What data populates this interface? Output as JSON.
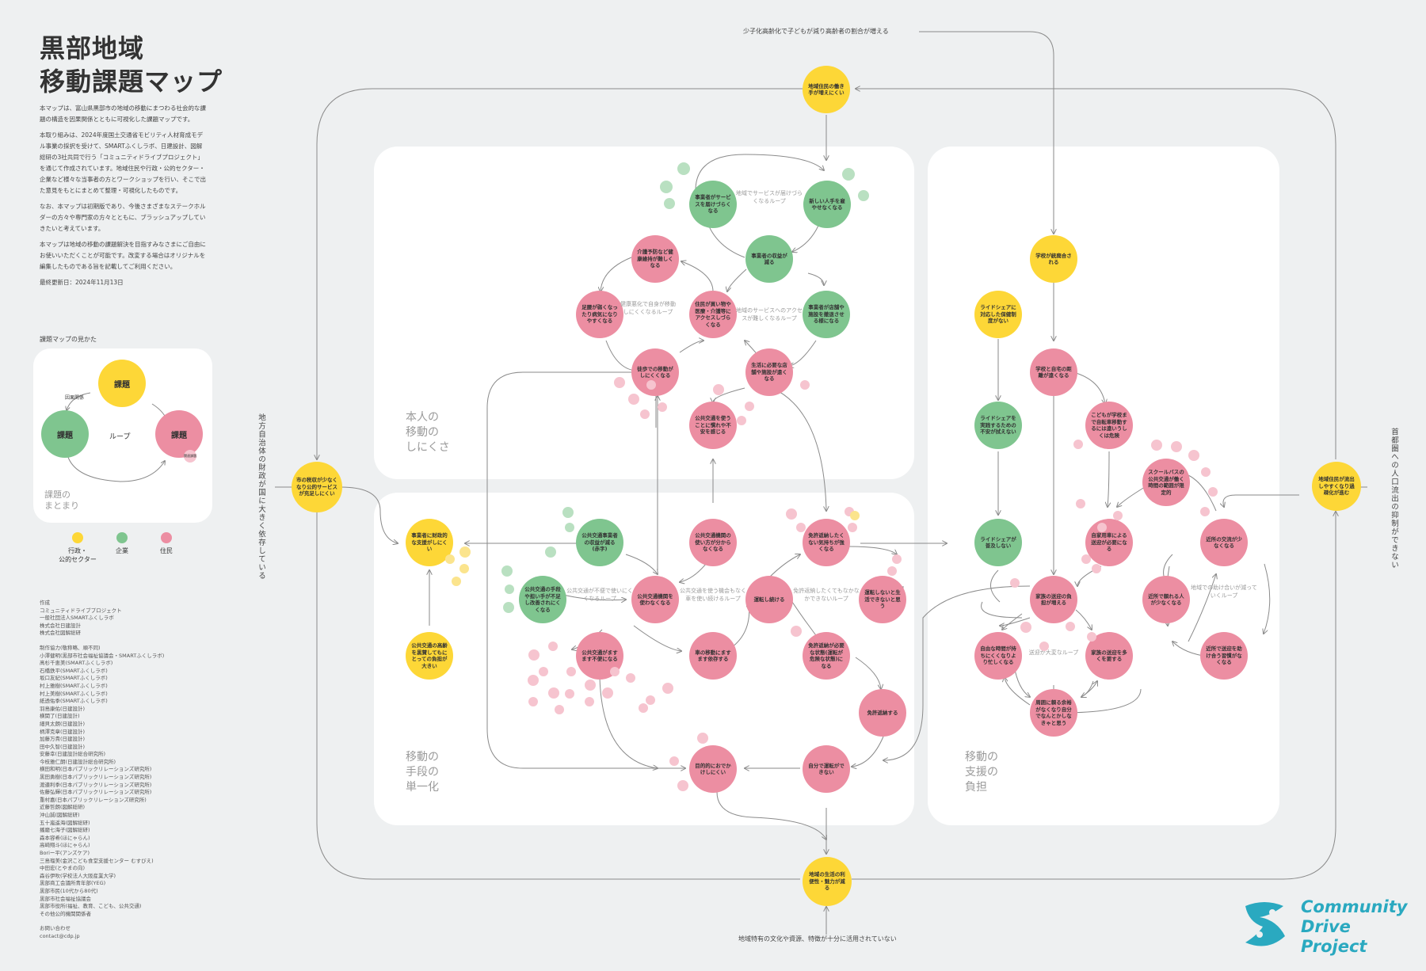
{
  "title": {
    "line1": "黒部地域",
    "line2": "移動課題マップ"
  },
  "intro": [
    "本マップは、富山県黒部市の地域の移動にまつわる社会的な課題の構造を因果関係とともに可視化した課題マップです。",
    "本取り組みは、2024年度国土交通省モビリティ人材育成モデル事業の採択を受けて、SMARTふくしラボ、日建設計、図解総研の3社共同で行う「コミュニティドライブプロジェクト」を通じて作成されています。地域住民や行政・公的セクター・企業など様々な当事者の方とワークショップを行い、そこで出た意見をもとにまとめて整理・可視化したものです。",
    "なお、本マップは初期版であり、今後さまざまなステークホルダーの方々や専門家の方々とともに、ブラッシュアップしていきたいと考えています。",
    "本マップは地域の移動の課題解決を目指すみなさまにご自由にお使いいただくことが可能です。改変する場合はオリジナルを編集したものである旨を記載してご利用ください。",
    "最終更新日：2024年11月13日"
  ],
  "legend": {
    "caption": "課題マップの見かた",
    "node_label": "課題",
    "arrow_label": "因果関係",
    "loop_label": "ループ",
    "mini_label": "関連課題",
    "group_label": "課題の\nまとまり",
    "colors": [
      {
        "label": "行政・\n公的セクター",
        "color": "#fdd737"
      },
      {
        "label": "企業",
        "color": "#7fc58f"
      },
      {
        "label": "住民",
        "color": "#ec8ea2"
      }
    ]
  },
  "credits": [
    "作成",
    "コミュニティドライブプロジェクト",
    "一般社団法人SMARTふくしラボ",
    "株式会社日建設計",
    "株式会社図解総研",
    "",
    "制作協力(敬称略、順不同)",
    "小澤健明(黒部市社会福祉協議会・SMARTふくしラボ)",
    "髙杉千恵美(SMARTふくしラボ)",
    "石橋鉄平(SMARTふくしラボ)",
    "坂口友紀(SMARTふくしラボ)",
    "村上雅樹(SMARTふくしラボ)",
    "村上美樹(SMARTふくしラボ)",
    "紙透佑季(SMARTふくしラボ)",
    "羽島康佑(日建設計)",
    "横関了(日建設計)",
    "細貝太朗(日建設計)",
    "柄澤克章(日建設計)",
    "加藤万貴(日建設計)",
    "田中久智(日建設計)",
    "安藤幸(日建設計総合研究所)",
    "今枝雅仁朗(日建設計総合研究所)",
    "横田和明(日本パブリックリレーションズ研究所)",
    "黒田勇樹(日本パブリックリレーションズ研究所)",
    "渡邉利季(日本パブリックリレーションズ研究所)",
    "佐藤弘輝(日本パブリックリレーションズ研究所)",
    "重村嘉(日本パブリックリレーションズ研究所)",
    "近藤哲朗(図解総研)",
    "沖山誠(図解総研)",
    "五十嵐遥海(図解総研)",
    "播磨七海子(図解総研)",
    "森本容希(ほにゃらん)",
    "高崎翔斗(ほにゃらん)",
    "Boriー平(アンズケア)",
    "三島瑠美(金沢こども食堂支援センター むすびえ)",
    "中田宏(とやまの向)",
    "森谷伊吹(学校法人大阪産業大学)",
    "黒部商工会議所青年部(YEG)",
    "黒部市民(10代から80代)",
    "黒部市社会福祉協議会",
    "黒部市役所(福祉、教育、こども、公共交通)",
    "その他公的機関関係者",
    "",
    "お問い合わせ",
    "contact@cdp.jp"
  ],
  "external": {
    "top": "少子化高齢化で子どもが減り高齢者の割合が増える",
    "bottom": "地域特有の文化や資源、特徴が十分に活用されていない",
    "left": "地方自治体の財政が国に大きく依存している",
    "right": "首都圏への人口流出の抑制ができない"
  },
  "sections": {
    "s1": "本人の\n移動の\nしにくさ",
    "s2": "移動の\n手段の\n単一化",
    "s3": "移動の\n支援の\n負担"
  },
  "nodes": {
    "n_top": "地域住民の働き手が増えにくい",
    "n_left": "市の税収が少なくなり公的サービスが充足しにくい",
    "n_bottom": "地域の生活の利便性・魅力が減る",
    "n_right": "地域住民が流出しやすくなり過疎化が進む",
    "n_biz": "事業者がサービスを届けづらくなる",
    "n_hire": "新しい人手を雇やせなくなる",
    "n_profit": "事業者の収益が減る",
    "n_care": "介護予防など健康維持が難しくなる",
    "n_legs": "足腰が弱くなったり病気になりやすくなる",
    "n_home": "住民が買い物や医療・介護等にアクセスしづらくなる",
    "n_store": "事業者が店舗や施設を撤退させる様になる",
    "n_walk": "徒歩での移動がしにくくなる",
    "n_far": "生活に必要な店舗や施設が遠くなる",
    "n_pt": "公共交通を使うことに慣れや不安を感じる",
    "n_support": "事業者に財政的な支援がしにくい",
    "n_pte": "公共交通事業者の収益が減る(赤字)",
    "n_ptf": "公共交通機関の使い方が分からなくなる",
    "n_license": "免許返納したくない気持ちが強くなる",
    "n_cost": "公共交通の手段や担い手が不足し改善されにくくなる",
    "n_ptl": "公共交通機関を使わなくなる",
    "n_drive": "運転し続ける",
    "n_nodrive": "運転しないと生活できないと思う",
    "n_gov": "公共交通の高齢を黒賛してもにとっての負担が大きい",
    "n_inc": "公共交通がますます不便になる",
    "n_car": "車の移動にますます依存する",
    "n_lic2": "免許返納が必要な状態(運転が危険な状態)になる",
    "n_ret": "免許返納する",
    "n_out": "目的的におでかけしにくい",
    "n_self": "自分で運転ができない",
    "n_school": "学校が統廃合される",
    "n_rides": "ライドシェアに対応した保健制度がない",
    "n_dist": "学校と自宅の距離が遠くなる",
    "n_rsfear": "ライドシェアを実践するための不安が拭えない",
    "n_kids": "こどもが学校まで自転車移動するには遠いうしくは危険",
    "n_bus": "スクールバスの公共交通が働く時間の範囲が限定的",
    "n_rs": "ライドシェアが普及しない",
    "n_fam": "自家用車による送迎が必要になる",
    "n_neigh": "近所の交流が少なくなる",
    "n_famb": "家族の送迎の負担が増える",
    "n_near": "近所で頼れる人が少なくなる",
    "n_help": "近所で送迎を助け合う習慣がなくなる",
    "n_free": "自由な時間が持ちにくくなりより忙しくなる",
    "n_pick": "家族の送迎を多くを要する",
    "n_ask": "周囲に頼る余裕がなくなり自分でなんとかしなきゃと思う"
  },
  "loops": {
    "l1": "地域でサービスが届けづらくなるループ",
    "l2": "健康悪化で自身が移動しにくくなるループ",
    "l3": "地域のサービスへのアクセスが難しくなるループ",
    "l4": "公共交通が不便で使いにくくなるループ",
    "l5": "公共交通を使う機会もなく車を使い続けるループ",
    "l6": "免許返納したくてもなかなかできないループ",
    "l7": "送迎が大変なループ",
    "l8": "地域での助け合いが減っていくループ"
  },
  "logo": {
    "line1": "Community",
    "line2": "Drive",
    "line3": "Project"
  },
  "colors": {
    "gov": "#fdd737",
    "biz": "#7fc58f",
    "res": "#ec8ea2"
  }
}
